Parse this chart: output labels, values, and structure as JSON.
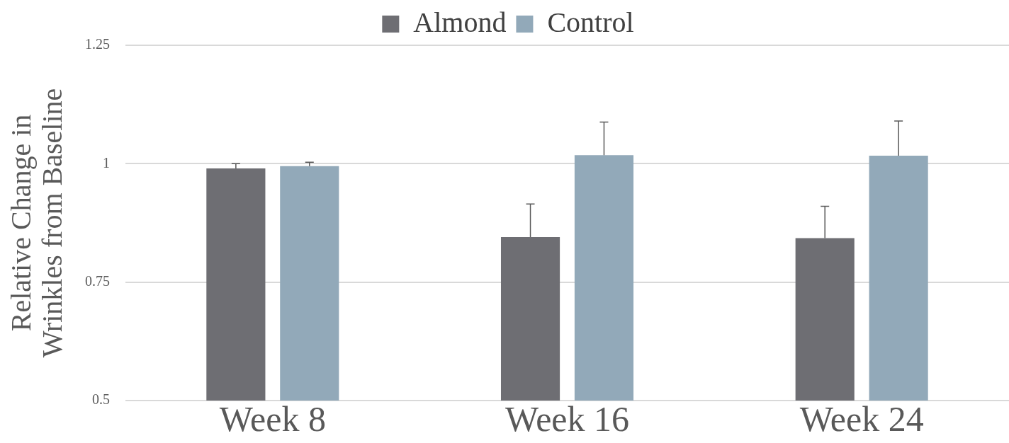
{
  "chart_data": {
    "type": "bar",
    "ylabel": "Relative Change in\nWrinkles from Baseline",
    "categories": [
      "Week 8",
      "Week 16",
      "Week 24"
    ],
    "series": [
      {
        "name": "Almond",
        "color": "#6e6e73",
        "values": [
          0.99,
          0.845,
          0.843
        ],
        "errors": [
          [
            0.99,
            1.0
          ],
          [
            0.845,
            0.915
          ],
          [
            0.843,
            0.91
          ]
        ]
      },
      {
        "name": "Control",
        "color": "#92a9b9",
        "values": [
          0.995,
          1.018,
          1.017
        ],
        "errors": [
          [
            0.995,
            1.003
          ],
          [
            1.018,
            1.088
          ],
          [
            1.017,
            1.09
          ]
        ]
      }
    ],
    "ylim": [
      0.5,
      1.25
    ],
    "yticks": [
      0.5,
      0.75,
      1,
      1.25
    ],
    "grid": "y",
    "legend": "top"
  }
}
